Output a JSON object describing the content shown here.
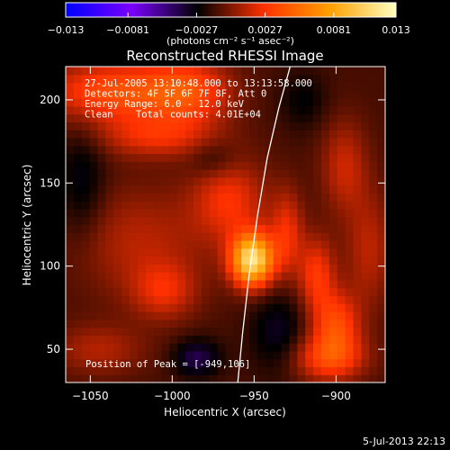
{
  "chart_data": {
    "type": "heatmap",
    "title": "Reconstructed RHESSI Image",
    "xlabel": "Heliocentric X (arcsec)",
    "ylabel": "Heliocentric Y (arcsec)",
    "xlim": [
      -1065,
      -870
    ],
    "ylim": [
      30,
      220
    ],
    "x_ticks": [
      -1050,
      -1000,
      -950,
      -900
    ],
    "x_tick_labels": [
      "−1050",
      "−1000",
      "−950",
      "−900"
    ],
    "y_ticks": [
      50,
      100,
      150,
      200
    ],
    "y_tick_labels": [
      "50",
      "100",
      "150",
      "200"
    ],
    "colorbar": {
      "range": [
        -0.013,
        0.013
      ],
      "ticks": [
        -0.013,
        -0.0081,
        -0.0027,
        0.0027,
        0.0081,
        0.013
      ],
      "tick_labels": [
        "−0.013",
        "−0.0081",
        "−0.0027",
        "0.0027",
        "0.0081",
        "0.013"
      ],
      "units_label": "(photons cm⁻² s⁻¹ asec⁻²)",
      "colors": [
        "#0000ff",
        "#7a00ff",
        "#000000",
        "#ff3000",
        "#ffa000",
        "#ffffc0"
      ]
    },
    "info_lines": [
      "27-Jul-2005 13:10:48.000 to 13:13:58.000",
      "Detectors: 4F 5F 6F 7F 8F, Att 0",
      "Energy Range: 6.0 - 12.0 keV",
      "Clean    Total counts: 4.01E+04"
    ],
    "peak_label": "Position of Peak = [-949,106]",
    "peak_position": [
      -949,
      106
    ],
    "limb_points": [
      [
        -960,
        30
      ],
      [
        -957,
        60
      ],
      [
        -953,
        95
      ],
      [
        -948,
        130
      ],
      [
        -942,
        165
      ],
      [
        -935,
        195
      ],
      [
        -928,
        220
      ]
    ],
    "emission_sources": [
      {
        "x": -951,
        "y": 104,
        "sx": 9,
        "sy": 11,
        "amp": 0.0125
      },
      {
        "x": -1035,
        "y": 205,
        "sx": 30,
        "sy": 13,
        "amp": 0.0052
      },
      {
        "x": -990,
        "y": 205,
        "sx": 18,
        "sy": 14,
        "amp": 0.0042
      },
      {
        "x": -1010,
        "y": 178,
        "sx": 25,
        "sy": 9,
        "amp": 0.0032
      },
      {
        "x": -965,
        "y": 140,
        "sx": 16,
        "sy": 18,
        "amp": 0.0036
      },
      {
        "x": -1020,
        "y": 115,
        "sx": 30,
        "sy": 24,
        "amp": 0.0023
      },
      {
        "x": -1005,
        "y": 85,
        "sx": 14,
        "sy": 12,
        "amp": 0.0029
      },
      {
        "x": -1045,
        "y": 50,
        "sx": 20,
        "sy": 11,
        "amp": 0.0022
      },
      {
        "x": -930,
        "y": 120,
        "sx": 7,
        "sy": 18,
        "amp": 0.0034
      },
      {
        "x": -912,
        "y": 95,
        "sx": 8,
        "sy": 16,
        "amp": 0.004
      },
      {
        "x": -900,
        "y": 65,
        "sx": 10,
        "sy": 14,
        "amp": 0.0046
      },
      {
        "x": -905,
        "y": 45,
        "sx": 16,
        "sy": 10,
        "amp": 0.0044
      },
      {
        "x": -895,
        "y": 160,
        "sx": 10,
        "sy": 20,
        "amp": 0.0027
      },
      {
        "x": -880,
        "y": 110,
        "sx": 10,
        "sy": 25,
        "amp": 0.0024
      },
      {
        "x": -985,
        "y": 45,
        "sx": 10,
        "sy": 8,
        "amp": -0.003
      },
      {
        "x": -935,
        "y": 60,
        "sx": 12,
        "sy": 18,
        "amp": -0.0022
      },
      {
        "x": -1055,
        "y": 150,
        "sx": 10,
        "sy": 25,
        "amp": -0.002
      },
      {
        "x": -975,
        "y": 165,
        "sx": 10,
        "sy": 8,
        "amp": -0.0015
      },
      {
        "x": -920,
        "y": 200,
        "sx": 10,
        "sy": 12,
        "amp": -0.0015
      }
    ],
    "background_level": -0.0012
  },
  "footer_date": "5-Jul-2013 22:13"
}
